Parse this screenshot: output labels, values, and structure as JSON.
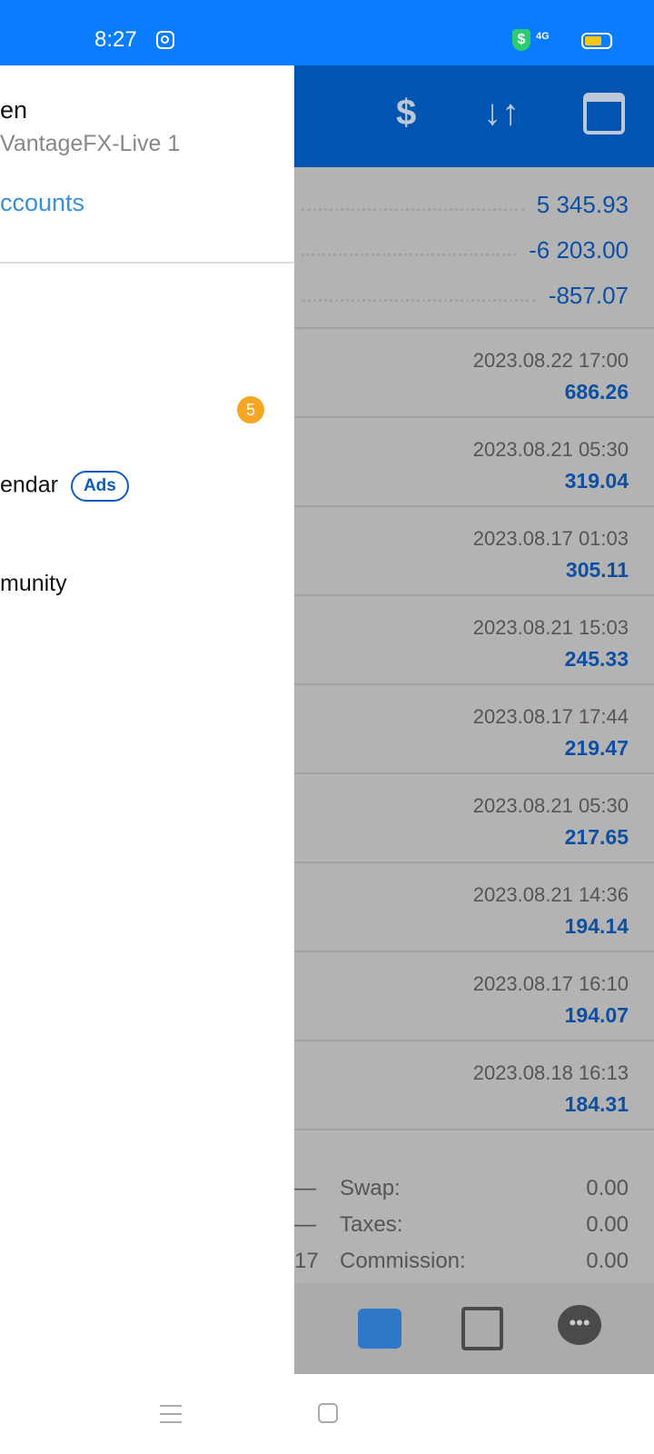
{
  "status_bar": {
    "time": "8:27",
    "network": "4G"
  },
  "drawer": {
    "name": "en",
    "server": "VantageFX-Live 1",
    "accounts_link": "ccounts",
    "badge_count": "5",
    "items": [
      {
        "label": "endar",
        "tag": "Ads"
      },
      {
        "label": "munity"
      }
    ]
  },
  "summary": [
    {
      "value": "5 345.93"
    },
    {
      "value": "-6 203.00"
    },
    {
      "value": "-857.07"
    }
  ],
  "trades": [
    {
      "date": "2023.08.22 17:00",
      "profit": "686.26"
    },
    {
      "date": "2023.08.21 05:30",
      "profit": "319.04"
    },
    {
      "date": "2023.08.17 01:03",
      "profit": "305.11"
    },
    {
      "date": "2023.08.21 15:03",
      "profit": "245.33"
    },
    {
      "date": "2023.08.17 17:44",
      "profit": "219.47"
    },
    {
      "date": "2023.08.21 05:30",
      "profit": "217.65"
    },
    {
      "date": "2023.08.21 14:36",
      "profit": "194.14"
    },
    {
      "date": "2023.08.17 16:10",
      "profit": "194.07"
    },
    {
      "date": "2023.08.18 16:13",
      "profit": "184.31"
    }
  ],
  "footer": [
    {
      "left": "—",
      "label": "Swap:",
      "value": "0.00"
    },
    {
      "left": "—",
      "label": "Taxes:",
      "value": "0.00"
    },
    {
      "left": "17",
      "label": "Commission:",
      "value": "0.00"
    }
  ],
  "colors": {
    "status_bar": "#0a7cff",
    "header": "#0055b3",
    "value_blue": "#0d4fa3",
    "badge": "#f5a623",
    "accent": "#3a8fd9"
  }
}
